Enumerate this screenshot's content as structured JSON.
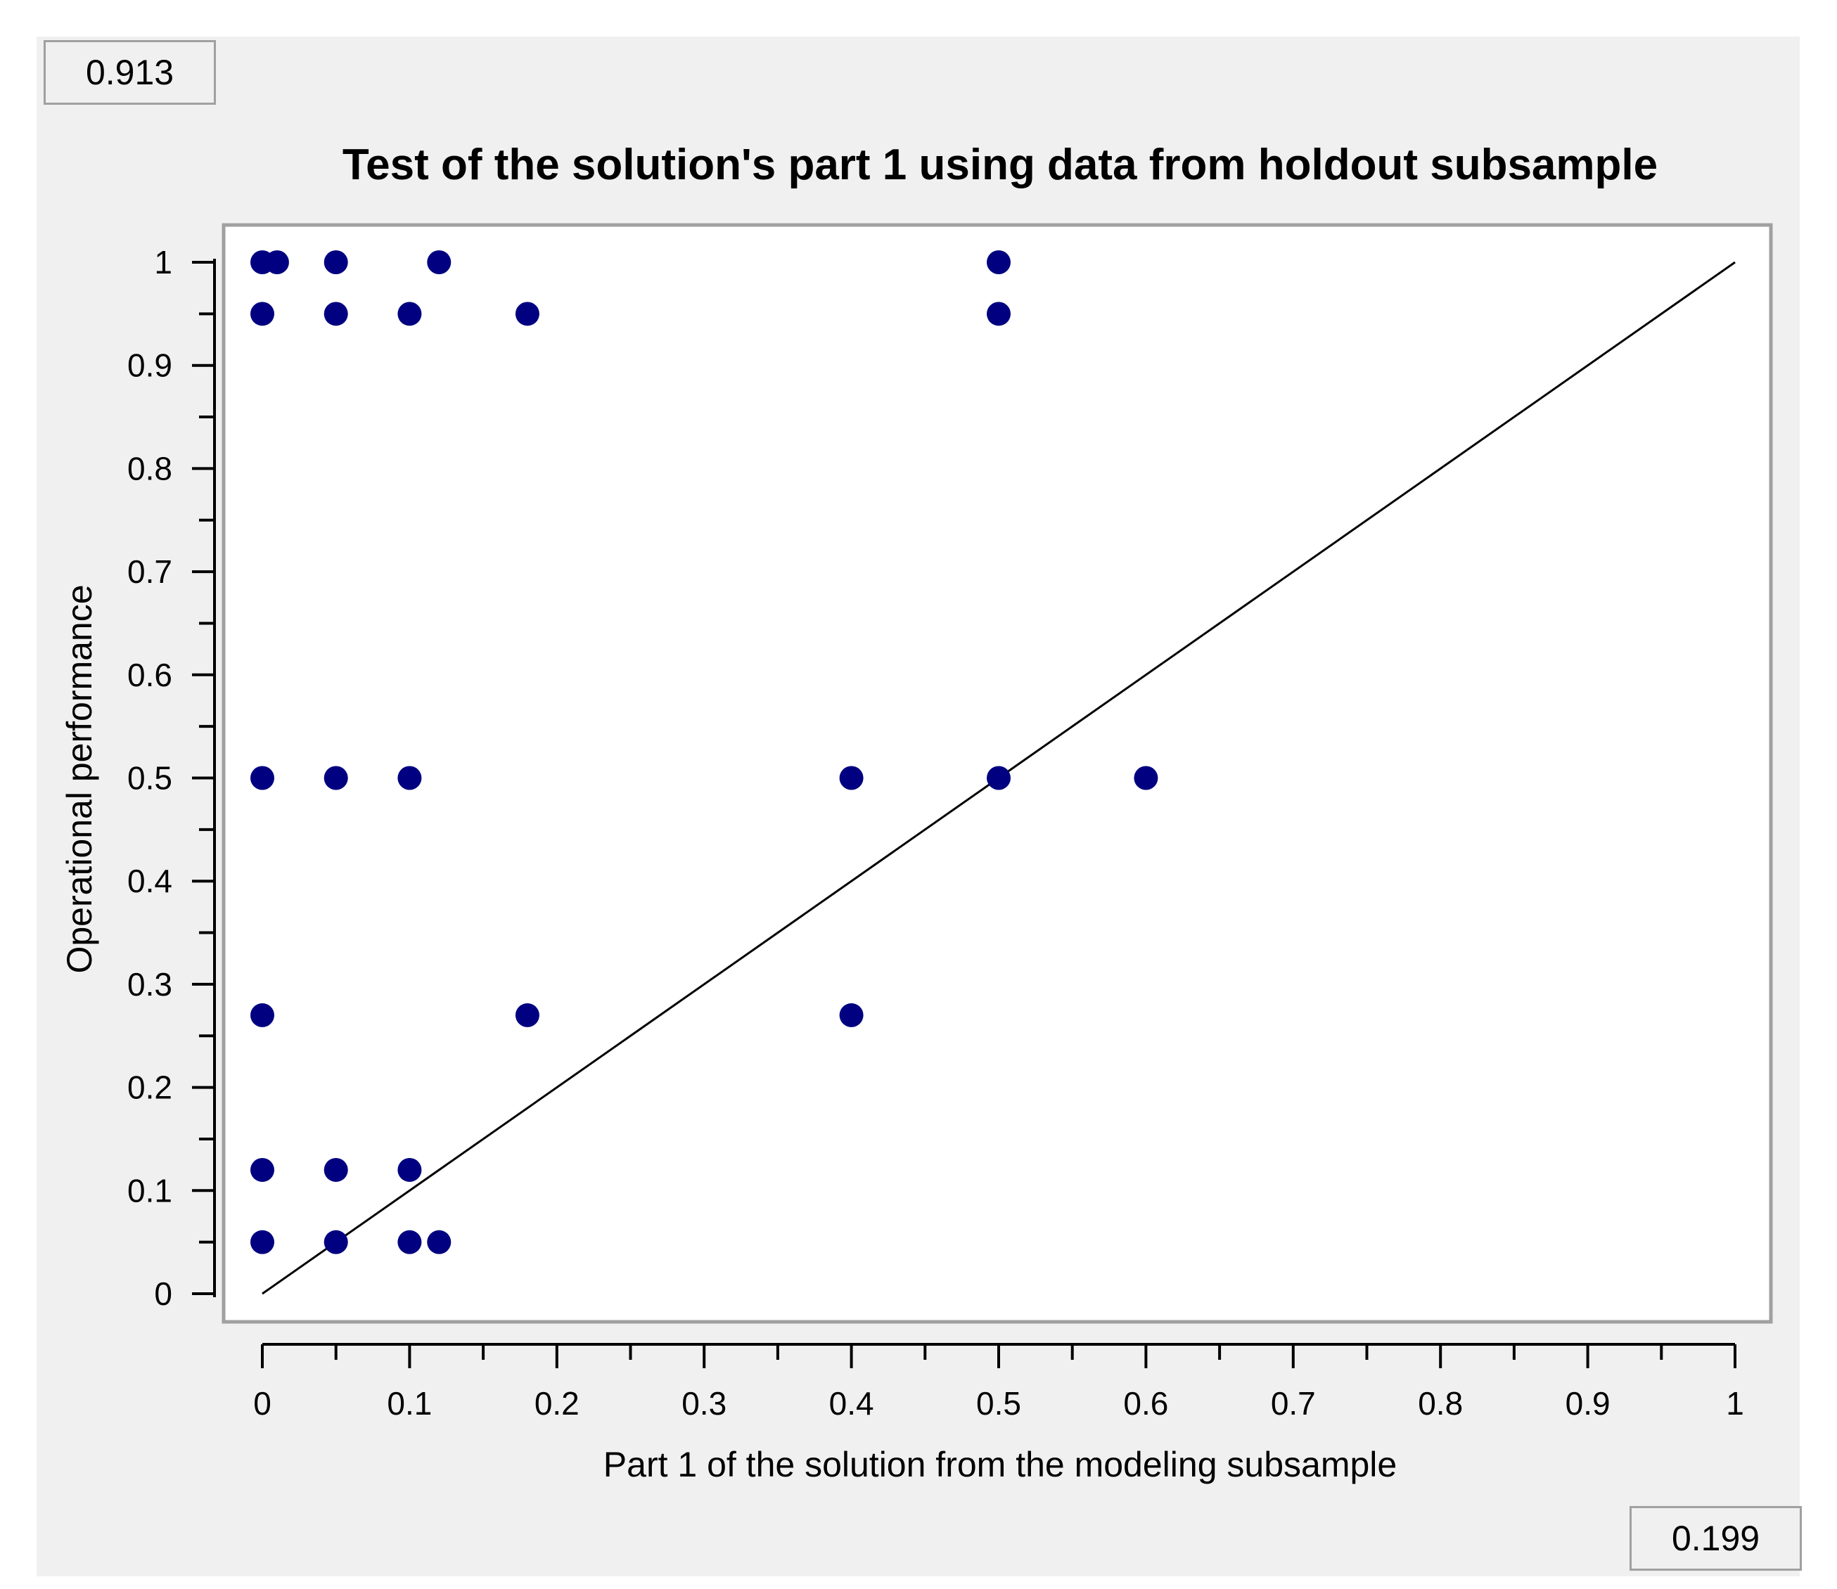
{
  "readouts": {
    "top_left": "0.913",
    "bottom_right": "0.199"
  },
  "colors": {
    "panel_bg": "#f0f0f0",
    "plot_bg": "#ffffff",
    "point": "#000080",
    "axis": "#000000",
    "line": "#000000"
  },
  "chart_data": {
    "type": "scatter",
    "title": "Test of the solution's part 1 using data from holdout subsample",
    "xlabel": "Part 1 of the solution from the modeling subsample",
    "ylabel": "Operational performance",
    "xlim": [
      0,
      1
    ],
    "ylim": [
      0,
      1
    ],
    "xticks": [
      "0",
      "0.1",
      "0.2",
      "0.3",
      "0.4",
      "0.5",
      "0.6",
      "0.7",
      "0.8",
      "0.9",
      "1"
    ],
    "yticks": [
      "0",
      "0.1",
      "0.2",
      "0.3",
      "0.4",
      "0.5",
      "0.6",
      "0.7",
      "0.8",
      "0.9",
      "1"
    ],
    "grid": false,
    "reference_line": {
      "x": [
        0,
        1
      ],
      "y": [
        0,
        1
      ]
    },
    "series": [
      {
        "x": [
          0,
          0.01,
          0.05,
          0.12,
          0.5,
          0,
          0.05,
          0.1,
          0.18,
          0.5,
          0,
          0.05,
          0.1,
          0.4,
          0.5,
          0.6,
          0,
          0.18,
          0.4,
          0,
          0.05,
          0.1,
          0,
          0.05,
          0.1,
          0.12
        ],
        "y": [
          1,
          1,
          1,
          1,
          1,
          0.95,
          0.95,
          0.95,
          0.95,
          0.95,
          0.5,
          0.5,
          0.5,
          0.5,
          0.5,
          0.5,
          0.27,
          0.27,
          0.27,
          0.12,
          0.12,
          0.12,
          0.05,
          0.05,
          0.05,
          0.05
        ]
      }
    ]
  }
}
